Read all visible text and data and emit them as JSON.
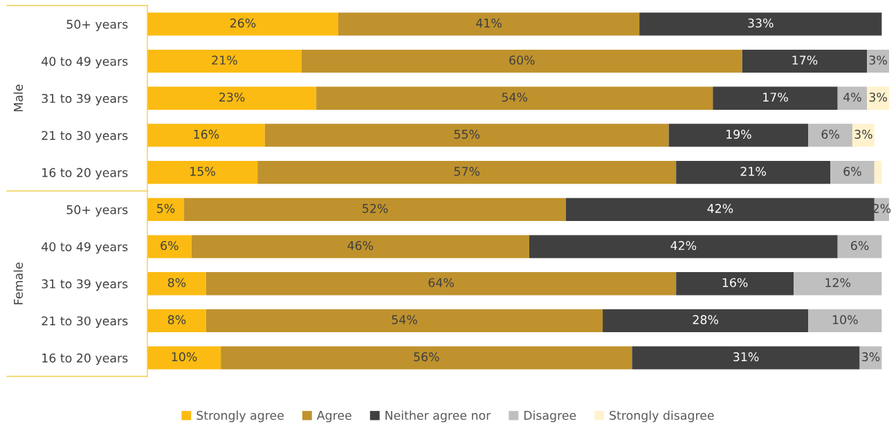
{
  "chart_data": {
    "type": "bar",
    "orientation": "horizontal",
    "stacked": true,
    "categories": [
      "50+ years",
      "40 to 49 years",
      "31 to 39 years",
      "21 to 30 years",
      "16 to 20 years",
      "50+ years",
      "40 to 49 years",
      "31 to 39 years",
      "21 to 30 years",
      "16 to 20 years"
    ],
    "annotations": [
      "Male",
      "Female"
    ],
    "tick_labels": "y",
    "legend": "bottom",
    "series": [
      {
        "name": "Strongly agree",
        "color": "#fbbb12",
        "values": [
          26,
          21,
          23,
          16,
          15,
          5,
          6,
          8,
          8,
          10
        ],
        "value_labels": [
          "26%",
          "21%",
          "23%",
          "16%",
          "15%",
          "5%",
          "6%",
          "8%",
          "8%",
          "10%"
        ]
      },
      {
        "name": "Agree",
        "color": "#bf922d",
        "values": [
          41,
          60,
          54,
          55,
          57,
          52,
          46,
          64,
          54,
          56
        ],
        "value_labels": [
          "41%",
          "60%",
          "54%",
          "55%",
          "57%",
          "52%",
          "46%",
          "64%",
          "54%",
          "56%"
        ]
      },
      {
        "name": "Neither agree nor",
        "color": "#404040",
        "values": [
          33,
          17,
          17,
          19,
          21,
          42,
          42,
          16,
          28,
          31
        ],
        "value_labels": [
          "33%",
          "17%",
          "17%",
          "19%",
          "21%",
          "42%",
          "42%",
          "16%",
          "28%",
          "31%"
        ]
      },
      {
        "name": "Disagree",
        "color": "#bfbfbf",
        "values": [
          null,
          3,
          4,
          6,
          6,
          2,
          6,
          12,
          10,
          3
        ],
        "value_labels": [
          null,
          "3%",
          "4%",
          "6%",
          "6%",
          "2%",
          "6%",
          "12%",
          "10%",
          "3%"
        ]
      },
      {
        "name": "Strongly disagree",
        "color": "#fff2cc",
        "values": [
          null,
          null,
          3,
          3,
          1,
          null,
          null,
          null,
          null,
          null
        ],
        "value_labels": [
          null,
          null,
          "3%",
          "3%",
          null,
          null,
          null,
          null,
          null,
          null
        ]
      }
    ]
  }
}
